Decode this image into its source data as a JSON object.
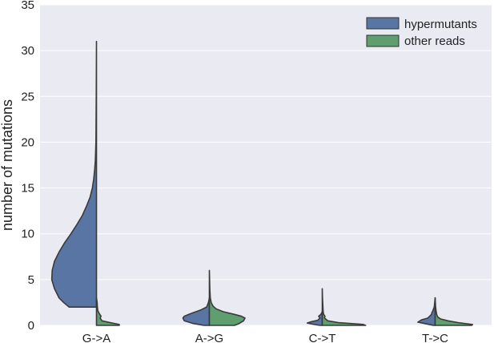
{
  "chart_data": {
    "type": "violin",
    "title": "",
    "xlabel": "",
    "ylabel": "number of mutations",
    "ylim": [
      0,
      35
    ],
    "yticks": [
      0,
      5,
      10,
      15,
      20,
      25,
      30,
      35
    ],
    "categories": [
      "G->A",
      "A->G",
      "C->T",
      "T->C"
    ],
    "grid": true,
    "split": true,
    "legend": {
      "placement": "top-right",
      "entries": [
        {
          "name": "hypermutants",
          "color": "#5975A4"
        },
        {
          "name": "other reads",
          "color": "#5F9E6E"
        }
      ]
    },
    "series": [
      {
        "name": "hypermutants",
        "color": "#5975A4",
        "side": "left",
        "profiles": [
          {
            "category": "G->A",
            "points": [
              [
                2,
                0.6
              ],
              [
                2.5,
                0.72
              ],
              [
                3,
                0.82
              ],
              [
                4,
                0.92
              ],
              [
                5,
                0.98
              ],
              [
                6,
                0.97
              ],
              [
                7,
                0.92
              ],
              [
                8,
                0.82
              ],
              [
                9,
                0.7
              ],
              [
                10,
                0.56
              ],
              [
                11,
                0.43
              ],
              [
                12,
                0.31
              ],
              [
                13,
                0.22
              ],
              [
                14,
                0.14
              ],
              [
                15,
                0.09
              ],
              [
                16,
                0.06
              ],
              [
                17,
                0.04
              ],
              [
                18,
                0.025
              ],
              [
                20,
                0.012
              ],
              [
                25,
                0.005
              ],
              [
                31,
                0
              ]
            ]
          },
          {
            "category": "A->G",
            "points": [
              [
                0,
                0.12
              ],
              [
                0.2,
                0.35
              ],
              [
                0.5,
                0.55
              ],
              [
                0.8,
                0.58
              ],
              [
                1,
                0.55
              ],
              [
                1.3,
                0.4
              ],
              [
                1.7,
                0.18
              ],
              [
                2,
                0.06
              ],
              [
                2.5,
                0.02
              ],
              [
                3,
                0
              ]
            ]
          },
          {
            "category": "C->T",
            "points": [
              [
                0,
                0.05
              ],
              [
                0.1,
                0.18
              ],
              [
                0.25,
                0.33
              ],
              [
                0.4,
                0.24
              ],
              [
                0.55,
                0.1
              ],
              [
                0.8,
                0.05
              ],
              [
                1,
                0.08
              ],
              [
                1.2,
                0.03
              ],
              [
                1.5,
                0
              ]
            ]
          },
          {
            "category": "T->C",
            "points": [
              [
                0,
                0.04
              ],
              [
                0.15,
                0.18
              ],
              [
                0.35,
                0.38
              ],
              [
                0.6,
                0.3
              ],
              [
                0.8,
                0.16
              ],
              [
                1,
                0.12
              ],
              [
                1.2,
                0.08
              ],
              [
                1.4,
                0.07
              ],
              [
                1.6,
                0.05
              ],
              [
                2,
                0.02
              ],
              [
                2.5,
                0.01
              ],
              [
                3,
                0
              ]
            ]
          }
        ]
      },
      {
        "name": "other reads",
        "color": "#5F9E6E",
        "side": "right",
        "profiles": [
          {
            "category": "G->A",
            "points": [
              [
                0,
                0.5
              ],
              [
                0.1,
                0.5
              ],
              [
                0.3,
                0.3
              ],
              [
                0.5,
                0.12
              ],
              [
                0.8,
                0.08
              ],
              [
                1,
                0.1
              ],
              [
                1.3,
                0.06
              ],
              [
                1.6,
                0.03
              ],
              [
                2,
                0.02
              ],
              [
                2.5,
                0.015
              ],
              [
                3,
                0
              ]
            ]
          },
          {
            "category": "A->G",
            "points": [
              [
                0,
                0.55
              ],
              [
                0.2,
                0.65
              ],
              [
                0.5,
                0.75
              ],
              [
                0.8,
                0.78
              ],
              [
                1,
                0.7
              ],
              [
                1.2,
                0.55
              ],
              [
                1.5,
                0.3
              ],
              [
                1.8,
                0.15
              ],
              [
                2.1,
                0.08
              ],
              [
                2.5,
                0.04
              ],
              [
                3,
                0.02
              ],
              [
                4,
                0.01
              ],
              [
                5,
                0.005
              ],
              [
                6,
                0
              ]
            ]
          },
          {
            "category": "C->T",
            "points": [
              [
                0,
                0.95
              ],
              [
                0.1,
                0.9
              ],
              [
                0.3,
                0.35
              ],
              [
                0.5,
                0.12
              ],
              [
                0.8,
                0.05
              ],
              [
                1,
                0.06
              ],
              [
                1.2,
                0.03
              ],
              [
                1.5,
                0.02
              ],
              [
                2,
                0.015
              ],
              [
                3,
                0.005
              ],
              [
                4,
                0
              ]
            ]
          },
          {
            "category": "T->C",
            "points": [
              [
                0,
                0.8
              ],
              [
                0.1,
                0.82
              ],
              [
                0.3,
                0.5
              ],
              [
                0.5,
                0.28
              ],
              [
                0.7,
                0.12
              ],
              [
                0.9,
                0.06
              ],
              [
                1.1,
                0.04
              ],
              [
                1.3,
                0.03
              ],
              [
                1.6,
                0.02
              ],
              [
                2,
                0.01
              ],
              [
                3,
                0
              ]
            ]
          }
        ]
      }
    ]
  }
}
